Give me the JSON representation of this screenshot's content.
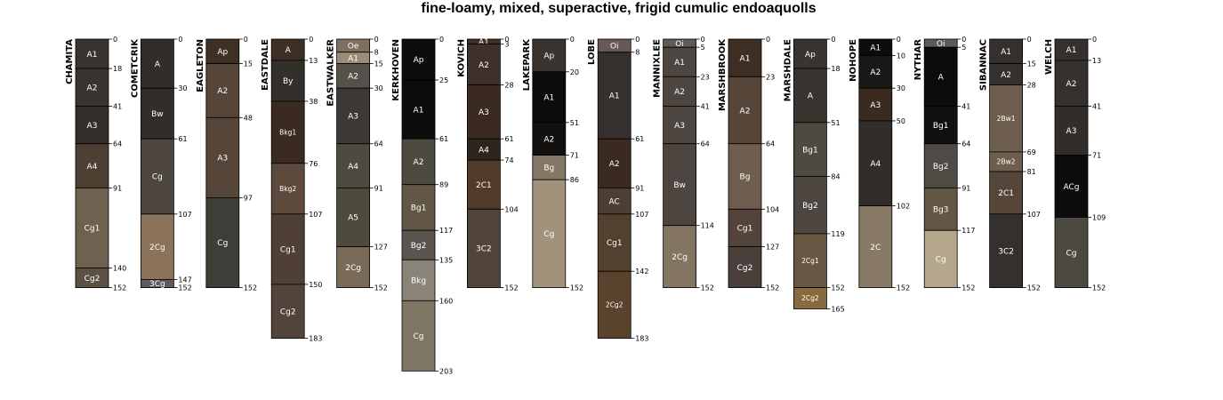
{
  "chart_data": {
    "type": "soil-profile-sketch",
    "title": "fine-loamy, mixed, superactive, frigid cumulic endoaquolls",
    "depth_units": "cm",
    "depth_range": [
      0,
      203
    ],
    "profiles": [
      {
        "name": "CHAMITA",
        "horizons": [
          {
            "name": "A1",
            "top": 0,
            "bottom": 18,
            "color": "#3a3431"
          },
          {
            "name": "A2",
            "top": 18,
            "bottom": 41,
            "color": "#3a3431"
          },
          {
            "name": "A3",
            "top": 41,
            "bottom": 64,
            "color": "#332e2b"
          },
          {
            "name": "A4",
            "top": 64,
            "bottom": 91,
            "color": "#4e3f33"
          },
          {
            "name": "Cg1",
            "top": 91,
            "bottom": 140,
            "color": "#6f6150"
          },
          {
            "name": "Cg2",
            "top": 140,
            "bottom": 152,
            "color": "#5c5042"
          }
        ]
      },
      {
        "name": "COMETCRIK",
        "horizons": [
          {
            "name": "A",
            "top": 0,
            "bottom": 30,
            "color": "#332d2a"
          },
          {
            "name": "Bw",
            "top": 30,
            "bottom": 61,
            "color": "#332d2a"
          },
          {
            "name": "Cg",
            "top": 61,
            "bottom": 107,
            "color": "#4c4540"
          },
          {
            "name": "2Cg",
            "top": 107,
            "bottom": 147,
            "color": "#8a7359"
          },
          {
            "name": "3Cg",
            "top": 147,
            "bottom": 152,
            "color": "#5e5c5a"
          }
        ]
      },
      {
        "name": "EAGLETON",
        "horizons": [
          {
            "name": "Ap",
            "top": 0,
            "bottom": 15,
            "color": "#3e3025"
          },
          {
            "name": "A2",
            "top": 15,
            "bottom": 48,
            "color": "#56463a"
          },
          {
            "name": "A3",
            "top": 48,
            "bottom": 97,
            "color": "#56463a"
          },
          {
            "name": "Cg",
            "top": 97,
            "bottom": 152,
            "color": "#3e3e38"
          }
        ]
      },
      {
        "name": "EASTDALE",
        "horizons": [
          {
            "name": "A",
            "top": 0,
            "bottom": 13,
            "color": "#3e2f25"
          },
          {
            "name": "By",
            "top": 13,
            "bottom": 38,
            "color": "#33302c"
          },
          {
            "name": "Bkg1",
            "top": 38,
            "bottom": 76,
            "color": "#3a2a20"
          },
          {
            "name": "Bkg2",
            "top": 76,
            "bottom": 107,
            "color": "#5e4a3c"
          },
          {
            "name": "Cg1",
            "top": 107,
            "bottom": 150,
            "color": "#4f3f34"
          },
          {
            "name": "Cg2",
            "top": 150,
            "bottom": 183,
            "color": "#53443b"
          }
        ]
      },
      {
        "name": "EASTWALKER",
        "horizons": [
          {
            "name": "Oe",
            "top": 0,
            "bottom": 8,
            "color": "#7e6f62"
          },
          {
            "name": "A1",
            "top": 8,
            "bottom": 15,
            "color": "#9b8b77"
          },
          {
            "name": "A2",
            "top": 15,
            "bottom": 30,
            "color": "#555049"
          },
          {
            "name": "A3",
            "top": 30,
            "bottom": 64,
            "color": "#3d3834"
          },
          {
            "name": "A4",
            "top": 64,
            "bottom": 91,
            "color": "#4e4a40"
          },
          {
            "name": "A5",
            "top": 91,
            "bottom": 127,
            "color": "#4e4a3c"
          },
          {
            "name": "2Cg",
            "top": 127,
            "bottom": 152,
            "color": "#7a6a58"
          }
        ]
      },
      {
        "name": "KERKHOVEN",
        "horizons": [
          {
            "name": "Ap",
            "top": 0,
            "bottom": 25,
            "color": "#0d0c0c"
          },
          {
            "name": "A1",
            "top": 25,
            "bottom": 61,
            "color": "#0d0c0c"
          },
          {
            "name": "A2",
            "top": 61,
            "bottom": 89,
            "color": "#4d4a40"
          },
          {
            "name": "Bg1",
            "top": 89,
            "bottom": 117,
            "color": "#625645"
          },
          {
            "name": "Bg2",
            "top": 117,
            "bottom": 135,
            "color": "#5a564f"
          },
          {
            "name": "Bkg",
            "top": 135,
            "bottom": 160,
            "color": "#8a8478"
          },
          {
            "name": "Cg",
            "top": 160,
            "bottom": 203,
            "color": "#7e7662"
          }
        ]
      },
      {
        "name": "KOVICH",
        "horizons": [
          {
            "name": "A1",
            "top": 0,
            "bottom": 3,
            "color": "#3e3129"
          },
          {
            "name": "A2",
            "top": 3,
            "bottom": 28,
            "color": "#3e3129"
          },
          {
            "name": "A3",
            "top": 28,
            "bottom": 61,
            "color": "#3a2a20"
          },
          {
            "name": "A4",
            "top": 61,
            "bottom": 74,
            "color": "#2e241c"
          },
          {
            "name": "2C1",
            "top": 74,
            "bottom": 104,
            "color": "#503a2a"
          },
          {
            "name": "3C2",
            "top": 104,
            "bottom": 152,
            "color": "#51443a"
          }
        ]
      },
      {
        "name": "LAKEPARK",
        "horizons": [
          {
            "name": "Ap",
            "top": 0,
            "bottom": 20,
            "color": "#3a3431"
          },
          {
            "name": "A1",
            "top": 20,
            "bottom": 51,
            "color": "#0d0c0c"
          },
          {
            "name": "A2",
            "top": 51,
            "bottom": 71,
            "color": "#121110"
          },
          {
            "name": "Bg",
            "top": 71,
            "bottom": 86,
            "color": "#857766"
          },
          {
            "name": "Cg",
            "top": 86,
            "bottom": 152,
            "color": "#a0927b"
          }
        ]
      },
      {
        "name": "LOBE",
        "horizons": [
          {
            "name": "Oi",
            "top": 0,
            "bottom": 8,
            "color": "#675a55"
          },
          {
            "name": "A1",
            "top": 8,
            "bottom": 61,
            "color": "#35302d"
          },
          {
            "name": "A2",
            "top": 61,
            "bottom": 91,
            "color": "#3a2a20"
          },
          {
            "name": "AC",
            "top": 91,
            "bottom": 107,
            "color": "#4c3e33"
          },
          {
            "name": "Cg1",
            "top": 107,
            "bottom": 142,
            "color": "#53412f"
          },
          {
            "name": "2Cg2",
            "top": 142,
            "bottom": 183,
            "color": "#5a432c"
          }
        ]
      },
      {
        "name": "MANNIXLEE",
        "horizons": [
          {
            "name": "Oi",
            "top": 0,
            "bottom": 5,
            "color": "#5e5b56"
          },
          {
            "name": "A1",
            "top": 5,
            "bottom": 23,
            "color": "#4c4540"
          },
          {
            "name": "A2",
            "top": 23,
            "bottom": 41,
            "color": "#4c4540"
          },
          {
            "name": "A3",
            "top": 41,
            "bottom": 64,
            "color": "#4c4540"
          },
          {
            "name": "Bw",
            "top": 64,
            "bottom": 114,
            "color": "#4c4540"
          },
          {
            "name": "2Cg",
            "top": 114,
            "bottom": 152,
            "color": "#847462"
          }
        ]
      },
      {
        "name": "MARSHBROOK",
        "horizons": [
          {
            "name": "A1",
            "top": 0,
            "bottom": 23,
            "color": "#3e2f25"
          },
          {
            "name": "A2",
            "top": 23,
            "bottom": 64,
            "color": "#56463a"
          },
          {
            "name": "Bg",
            "top": 64,
            "bottom": 104,
            "color": "#6f5e4f"
          },
          {
            "name": "Cg1",
            "top": 104,
            "bottom": 127,
            "color": "#53443b"
          },
          {
            "name": "Cg2",
            "top": 127,
            "bottom": 152,
            "color": "#4a403b"
          }
        ]
      },
      {
        "name": "MARSHDALE",
        "horizons": [
          {
            "name": "Ap",
            "top": 0,
            "bottom": 18,
            "color": "#3a3431"
          },
          {
            "name": "A",
            "top": 18,
            "bottom": 51,
            "color": "#3a3431"
          },
          {
            "name": "Bg1",
            "top": 51,
            "bottom": 84,
            "color": "#4e4a40"
          },
          {
            "name": "Bg2",
            "top": 84,
            "bottom": 119,
            "color": "#4c4540"
          },
          {
            "name": "2Cg1",
            "top": 119,
            "bottom": 152,
            "color": "#675641"
          },
          {
            "name": "2Cg2",
            "top": 152,
            "bottom": 165,
            "color": "#8a6a3c"
          }
        ]
      },
      {
        "name": "NOHOPE",
        "horizons": [
          {
            "name": "A1",
            "top": 0,
            "bottom": 10,
            "color": "#0d0c0c"
          },
          {
            "name": "A2",
            "top": 10,
            "bottom": 30,
            "color": "#1a1816"
          },
          {
            "name": "A3",
            "top": 30,
            "bottom": 50,
            "color": "#3a2a20"
          },
          {
            "name": "A4",
            "top": 50,
            "bottom": 102,
            "color": "#332d2a"
          },
          {
            "name": "2C",
            "top": 102,
            "bottom": 152,
            "color": "#877964"
          }
        ]
      },
      {
        "name": "NYTHAR",
        "horizons": [
          {
            "name": "Oi",
            "top": 0,
            "bottom": 5,
            "color": "#5e5b56"
          },
          {
            "name": "A",
            "top": 5,
            "bottom": 41,
            "color": "#0d0c0c"
          },
          {
            "name": "Bg1",
            "top": 41,
            "bottom": 64,
            "color": "#121110"
          },
          {
            "name": "Bg2",
            "top": 64,
            "bottom": 91,
            "color": "#4e4a44"
          },
          {
            "name": "Bg3",
            "top": 91,
            "bottom": 117,
            "color": "#625645"
          },
          {
            "name": "Cg",
            "top": 117,
            "bottom": 152,
            "color": "#b5a78c"
          }
        ]
      },
      {
        "name": "SIBANNAC",
        "horizons": [
          {
            "name": "A1",
            "top": 0,
            "bottom": 15,
            "color": "#35302d"
          },
          {
            "name": "A2",
            "top": 15,
            "bottom": 28,
            "color": "#35302d"
          },
          {
            "name": "2Bw1",
            "top": 28,
            "bottom": 69,
            "color": "#6e5e4f"
          },
          {
            "name": "2Bw2",
            "top": 69,
            "bottom": 81,
            "color": "#6e5e4f"
          },
          {
            "name": "2C1",
            "top": 81,
            "bottom": 107,
            "color": "#56463a"
          },
          {
            "name": "3C2",
            "top": 107,
            "bottom": 152,
            "color": "#35302d"
          }
        ]
      },
      {
        "name": "WELCH",
        "horizons": [
          {
            "name": "A1",
            "top": 0,
            "bottom": 13,
            "color": "#35302d"
          },
          {
            "name": "A2",
            "top": 13,
            "bottom": 41,
            "color": "#35302d"
          },
          {
            "name": "A3",
            "top": 41,
            "bottom": 71,
            "color": "#332d2a"
          },
          {
            "name": "ACg",
            "top": 71,
            "bottom": 109,
            "color": "#0d0c0c"
          },
          {
            "name": "Cg",
            "top": 109,
            "bottom": 152,
            "color": "#4c4a40"
          }
        ]
      }
    ]
  }
}
